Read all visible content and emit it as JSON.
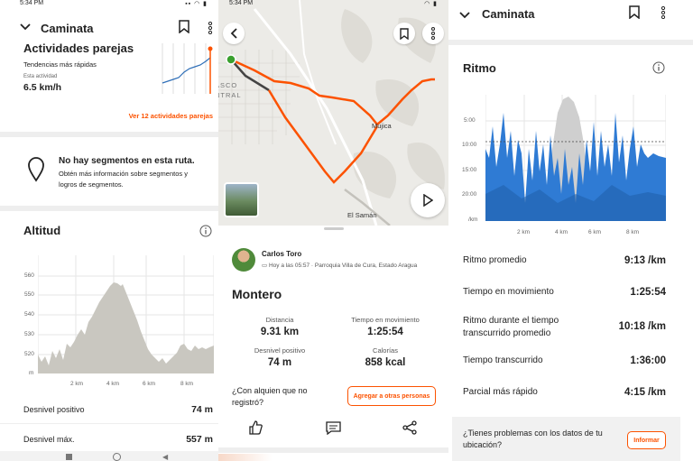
{
  "panel1": {
    "status_time": "5:34 PM",
    "title": "Caminata",
    "activities": {
      "heading": "Actividades parejas",
      "subtitle": "Tendencias más rápidas",
      "metric_label": "Esta actividad",
      "metric_value": "6.5 km/h",
      "link": "Ver 12 actividades parejas"
    },
    "segments": {
      "heading": "No hay segmentos en esta ruta.",
      "body": "Obtén más información sobre segmentos y logros de segmentos."
    },
    "altitude": {
      "heading": "Altitud",
      "y_ticks": [
        "560",
        "550",
        "540",
        "530",
        "520",
        "m"
      ],
      "x_ticks": [
        "2 km",
        "4 km",
        "6 km",
        "8 km"
      ],
      "rows": [
        {
          "label": "Desnivel positivo",
          "value": "74 m"
        },
        {
          "label": "Desnivel máx.",
          "value": "557 m"
        }
      ]
    }
  },
  "panel2": {
    "status_time": "5:34 PM",
    "map_labels": [
      "ASCO",
      "NTRAL",
      "Mujica",
      "El Samán"
    ],
    "user_name": "Carlos Toro",
    "meta": "Hoy a las 05:57 · Parroquia Villa de Cura, Estado Aragua",
    "activity_title": "Montero",
    "stats": [
      {
        "label": "Distancia",
        "value": "9.31 km"
      },
      {
        "label": "Tiempo en movimiento",
        "value": "1:25:54"
      },
      {
        "label": "Desnivel positivo",
        "value": "74 m"
      },
      {
        "label": "Calorías",
        "value": "858 kcal"
      }
    ],
    "question": "¿Con alquien que no registró?",
    "add_button": "Agregar a otras personas"
  },
  "panel3": {
    "title": "Caminata",
    "pace": {
      "heading": "Ritmo",
      "y_ticks": [
        "5:00",
        "10:00",
        "15:00",
        "20:00",
        "/km"
      ],
      "x_ticks": [
        "2 km",
        "4 km",
        "6 km",
        "8 km"
      ]
    },
    "rows": [
      {
        "label": "Ritmo promedio",
        "value": "9:13 /km"
      },
      {
        "label": "Tiempo en movimiento",
        "value": "1:25:54"
      },
      {
        "label": "Ritmo durante el tiempo transcurrido promedio",
        "value": "10:18 /km"
      },
      {
        "label": "Tiempo transcurrido",
        "value": "1:36:00"
      },
      {
        "label": "Parcial más rápido",
        "value": "4:15 /km"
      }
    ],
    "problem_text": "¿Tienes problemas con los datos de tu ubicación?",
    "report_button": "Informar"
  },
  "colors": {
    "accent": "#fc5200",
    "pace_blue": "#2f7bd4",
    "elevation_gray": "#c9c7c0"
  }
}
